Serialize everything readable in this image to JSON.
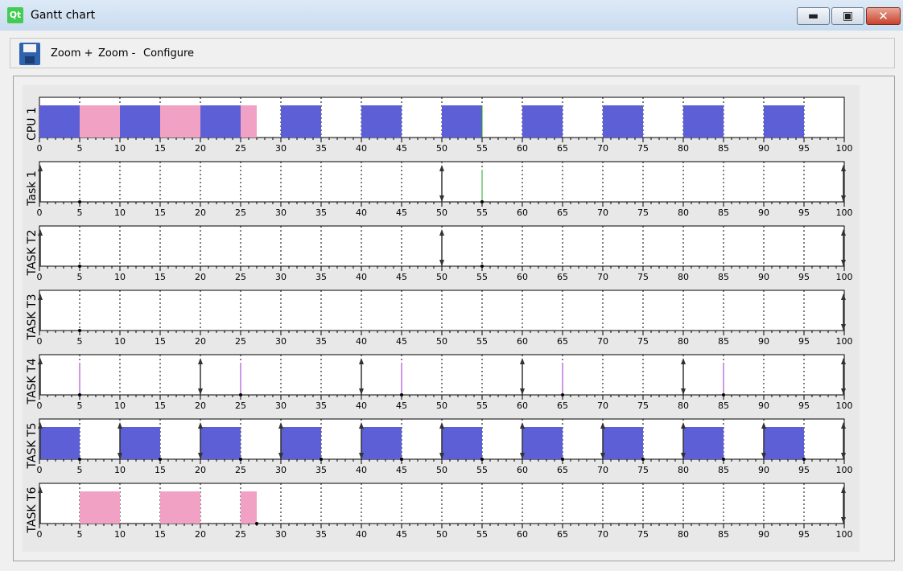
{
  "window": {
    "title": "Gantt chart",
    "app_icon": "Qt",
    "minimize_glyph": "▬",
    "maximize_glyph": "▣",
    "close_glyph": "✕"
  },
  "toolbar": {
    "save_icon": "floppy-disk-icon",
    "zoom_in_label": "Zoom +",
    "zoom_out_label": "Zoom -",
    "configure_label": "Configure"
  },
  "colors": {
    "blue": "#5c5fd6",
    "pink": "#f0a1c4",
    "green": "#22aa22",
    "purple": "#9b30d0",
    "arrow": "#333333"
  },
  "chart_data": {
    "type": "gantt",
    "x_range": [
      0,
      100
    ],
    "x_ticks": [
      "0",
      "5",
      "10",
      "15",
      "20",
      "25",
      "30",
      "35",
      "40",
      "45",
      "50",
      "55",
      "60",
      "65",
      "70",
      "75",
      "80",
      "85",
      "90",
      "95",
      "100"
    ],
    "rows": [
      {
        "label": "CPU 1",
        "blocks": [
          {
            "start": 0,
            "end": 5,
            "color": "blue"
          },
          {
            "start": 5,
            "end": 10,
            "color": "pink"
          },
          {
            "start": 10,
            "end": 15,
            "color": "blue"
          },
          {
            "start": 15,
            "end": 20,
            "color": "pink"
          },
          {
            "start": 20,
            "end": 25,
            "color": "blue"
          },
          {
            "start": 25,
            "end": 27,
            "color": "pink"
          },
          {
            "start": 30,
            "end": 35,
            "color": "blue"
          },
          {
            "start": 40,
            "end": 45,
            "color": "blue"
          },
          {
            "start": 50,
            "end": 55,
            "color": "blue"
          },
          {
            "start": 60,
            "end": 65,
            "color": "blue"
          },
          {
            "start": 70,
            "end": 75,
            "color": "blue"
          },
          {
            "start": 80,
            "end": 85,
            "color": "blue"
          },
          {
            "start": 90,
            "end": 95,
            "color": "blue"
          }
        ],
        "arrivals": [],
        "deadlines": [],
        "dots": [],
        "lines": [
          {
            "x": 55,
            "color": "green"
          }
        ]
      },
      {
        "label": "Task 1",
        "blocks": [],
        "arrivals": [
          0,
          50,
          100
        ],
        "deadlines": [
          50,
          100
        ],
        "dots": [
          5,
          55
        ],
        "lines": [
          {
            "x": 55,
            "color": "green"
          }
        ]
      },
      {
        "label": "TASK T2",
        "blocks": [],
        "arrivals": [
          0,
          50,
          100
        ],
        "deadlines": [
          50,
          100
        ],
        "dots": [
          5,
          55
        ],
        "lines": []
      },
      {
        "label": "TASK T3",
        "blocks": [],
        "arrivals": [
          0,
          100
        ],
        "deadlines": [
          100
        ],
        "dots": [
          5
        ],
        "lines": []
      },
      {
        "label": "TASK T4",
        "blocks": [],
        "arrivals": [
          0,
          20,
          40,
          60,
          80,
          100
        ],
        "deadlines": [
          20,
          40,
          60,
          80,
          100
        ],
        "dots": [
          5,
          25,
          45,
          65,
          85
        ],
        "lines": [
          {
            "x": 5,
            "color": "purple"
          },
          {
            "x": 25,
            "color": "purple"
          },
          {
            "x": 45,
            "color": "purple"
          },
          {
            "x": 65,
            "color": "purple"
          },
          {
            "x": 85,
            "color": "purple"
          }
        ]
      },
      {
        "label": "TASK T5",
        "blocks": [
          {
            "start": 0,
            "end": 5,
            "color": "blue"
          },
          {
            "start": 10,
            "end": 15,
            "color": "blue"
          },
          {
            "start": 20,
            "end": 25,
            "color": "blue"
          },
          {
            "start": 30,
            "end": 35,
            "color": "blue"
          },
          {
            "start": 40,
            "end": 45,
            "color": "blue"
          },
          {
            "start": 50,
            "end": 55,
            "color": "blue"
          },
          {
            "start": 60,
            "end": 65,
            "color": "blue"
          },
          {
            "start": 70,
            "end": 75,
            "color": "blue"
          },
          {
            "start": 80,
            "end": 85,
            "color": "blue"
          },
          {
            "start": 90,
            "end": 95,
            "color": "blue"
          }
        ],
        "arrivals": [
          0,
          10,
          20,
          30,
          40,
          50,
          60,
          70,
          80,
          90,
          100
        ],
        "deadlines": [
          10,
          20,
          30,
          40,
          50,
          60,
          70,
          80,
          90,
          100
        ],
        "dots": [
          5,
          15,
          25,
          35,
          45,
          55,
          65,
          75,
          85,
          95
        ],
        "lines": []
      },
      {
        "label": "TASK T6",
        "blocks": [
          {
            "start": 5,
            "end": 10,
            "color": "pink"
          },
          {
            "start": 15,
            "end": 20,
            "color": "pink"
          },
          {
            "start": 25,
            "end": 27,
            "color": "pink"
          }
        ],
        "arrivals": [
          0,
          100
        ],
        "deadlines": [
          100
        ],
        "dots": [
          27
        ],
        "lines": []
      }
    ]
  }
}
